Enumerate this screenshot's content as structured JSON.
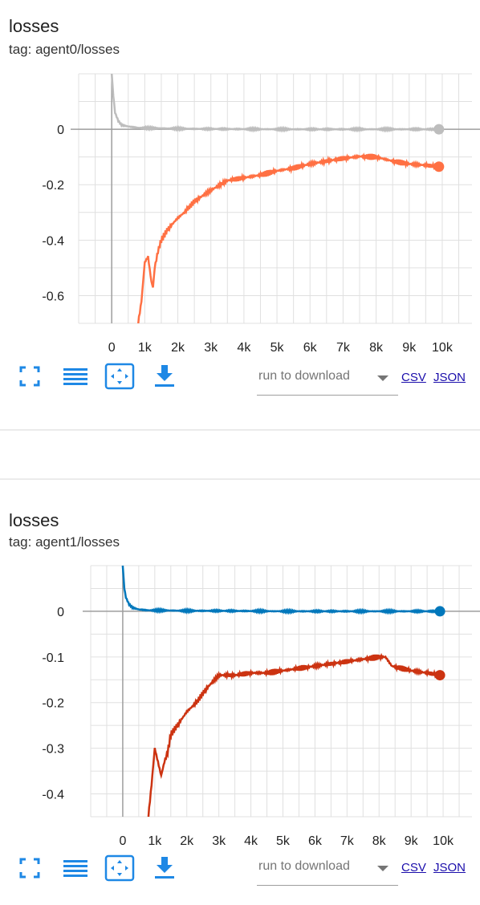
{
  "cards": [
    {
      "title": "losses",
      "tag": "tag: agent0/losses",
      "toolbar": {
        "icons": [
          "fullscreen-icon",
          "data-list-icon",
          "fit-domain-icon",
          "download-icon"
        ],
        "run_placeholder": "run to download",
        "csv_label": "CSV",
        "json_label": "JSON"
      }
    },
    {
      "title": "losses",
      "tag": "tag: agent1/losses",
      "toolbar": {
        "icons": [
          "fullscreen-icon",
          "data-list-icon",
          "fit-domain-icon",
          "download-icon"
        ],
        "run_placeholder": "run to download",
        "csv_label": "CSV",
        "json_label": "JSON"
      }
    }
  ],
  "chart_data": [
    {
      "type": "line",
      "title": "losses",
      "xlabel": "",
      "ylabel": "",
      "xlim": [
        -1000,
        10900
      ],
      "ylim": [
        -0.7,
        0.2
      ],
      "x_ticks": [
        0,
        1000,
        2000,
        3000,
        4000,
        5000,
        6000,
        7000,
        8000,
        9000,
        10000
      ],
      "x_tick_labels": [
        "0",
        "1k",
        "2k",
        "3k",
        "4k",
        "5k",
        "6k",
        "7k",
        "8k",
        "9k",
        "10k"
      ],
      "y_ticks": [
        0,
        -0.2,
        -0.4,
        -0.6
      ],
      "y_tick_labels": [
        "0",
        "-0.2",
        "-0.4",
        "-0.6"
      ],
      "grid": true,
      "series": [
        {
          "color": "#bdbdbd",
          "x": [
            0,
            50,
            100,
            200,
            300,
            500,
            800,
            1200,
            2000,
            3000,
            5000,
            7000,
            9000,
            9900
          ],
          "y": [
            0.2,
            0.12,
            0.06,
            0.03,
            0.015,
            0.01,
            0.005,
            0.004,
            0.002,
            0.001,
            0.0,
            0.0,
            0.0,
            0.0
          ]
        },
        {
          "color": "#ff7043",
          "x": [
            800,
            900,
            1000,
            1100,
            1200,
            1250,
            1300,
            1400,
            1500,
            1700,
            2000,
            2200,
            2500,
            3000,
            3500,
            4000,
            4500,
            5000,
            5500,
            6000,
            6500,
            7000,
            7500,
            8000,
            8500,
            9000,
            9500,
            9900
          ],
          "y": [
            -0.7,
            -0.62,
            -0.48,
            -0.46,
            -0.55,
            -0.57,
            -0.5,
            -0.44,
            -0.4,
            -0.36,
            -0.32,
            -0.3,
            -0.26,
            -0.22,
            -0.185,
            -0.175,
            -0.165,
            -0.15,
            -0.14,
            -0.125,
            -0.115,
            -0.105,
            -0.098,
            -0.1,
            -0.115,
            -0.125,
            -0.13,
            -0.135
          ]
        }
      ]
    },
    {
      "type": "line",
      "title": "losses",
      "xlabel": "",
      "ylabel": "",
      "xlim": [
        -1000,
        10900
      ],
      "ylim": [
        -0.45,
        0.1
      ],
      "x_ticks": [
        0,
        1000,
        2000,
        3000,
        4000,
        5000,
        6000,
        7000,
        8000,
        9000,
        10000
      ],
      "x_tick_labels": [
        "0",
        "1k",
        "2k",
        "3k",
        "4k",
        "5k",
        "6k",
        "7k",
        "8k",
        "9k",
        "10k"
      ],
      "y_ticks": [
        0,
        -0.1,
        -0.2,
        -0.3,
        -0.4
      ],
      "y_tick_labels": [
        "0",
        "-0.1",
        "-0.2",
        "-0.3",
        "-0.4"
      ],
      "grid": true,
      "series": [
        {
          "color": "#0077bb",
          "x": [
            0,
            50,
            100,
            200,
            300,
            500,
            800,
            1200,
            2000,
            3000,
            5000,
            7000,
            9000,
            9900
          ],
          "y": [
            0.1,
            0.05,
            0.03,
            0.015,
            0.008,
            0.004,
            0.002,
            0.002,
            0.001,
            0.001,
            0.0,
            0.0,
            0.0,
            0.0
          ]
        },
        {
          "color": "#cc3311",
          "x": [
            800,
            900,
            1000,
            1100,
            1200,
            1300,
            1400,
            1500,
            1700,
            2000,
            2300,
            2600,
            3000,
            3500,
            4000,
            4500,
            5000,
            5500,
            6000,
            6500,
            7000,
            7500,
            8000,
            8200,
            8400,
            8700,
            9000,
            9500,
            9900
          ],
          "y": [
            -0.45,
            -0.38,
            -0.3,
            -0.33,
            -0.36,
            -0.33,
            -0.31,
            -0.27,
            -0.25,
            -0.22,
            -0.2,
            -0.17,
            -0.14,
            -0.14,
            -0.135,
            -0.135,
            -0.13,
            -0.125,
            -0.12,
            -0.115,
            -0.11,
            -0.105,
            -0.1,
            -0.1,
            -0.12,
            -0.125,
            -0.13,
            -0.135,
            -0.14
          ]
        }
      ]
    }
  ]
}
